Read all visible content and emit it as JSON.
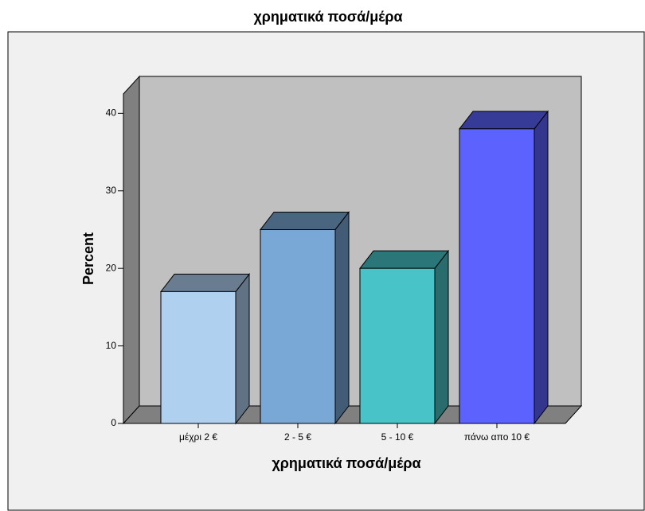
{
  "chart_data": {
    "type": "bar3d",
    "title": "χρηματικά ποσά/μέρα",
    "x_label": "χρηματικά ποσά/μέρα",
    "y_label": "Percent",
    "categories": [
      "μέχρι 2 €",
      "2 - 5 €",
      "5 - 10 €",
      "πάνω απο 10 €"
    ],
    "values": [
      17,
      25,
      20,
      38
    ],
    "colors": [
      "#b0d0f0",
      "#7aa8d6",
      "#48c4c8",
      "#5c62fe"
    ],
    "ylim": [
      0,
      42.5
    ],
    "yticks": [
      0,
      10,
      20,
      30,
      40
    ]
  }
}
